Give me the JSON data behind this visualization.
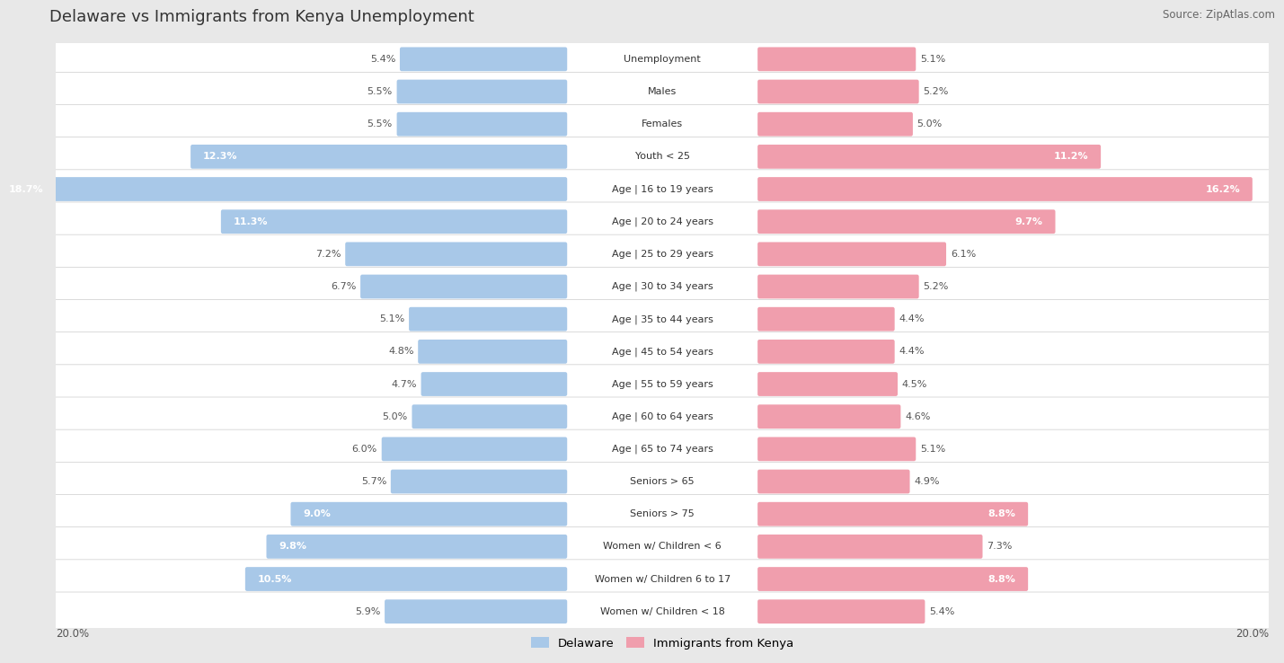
{
  "title": "Delaware vs Immigrants from Kenya Unemployment",
  "source": "Source: ZipAtlas.com",
  "categories": [
    "Unemployment",
    "Males",
    "Females",
    "Youth < 25",
    "Age | 16 to 19 years",
    "Age | 20 to 24 years",
    "Age | 25 to 29 years",
    "Age | 30 to 34 years",
    "Age | 35 to 44 years",
    "Age | 45 to 54 years",
    "Age | 55 to 59 years",
    "Age | 60 to 64 years",
    "Age | 65 to 74 years",
    "Seniors > 65",
    "Seniors > 75",
    "Women w/ Children < 6",
    "Women w/ Children 6 to 17",
    "Women w/ Children < 18"
  ],
  "delaware": [
    5.4,
    5.5,
    5.5,
    12.3,
    18.7,
    11.3,
    7.2,
    6.7,
    5.1,
    4.8,
    4.7,
    5.0,
    6.0,
    5.7,
    9.0,
    9.8,
    10.5,
    5.9
  ],
  "kenya": [
    5.1,
    5.2,
    5.0,
    11.2,
    16.2,
    9.7,
    6.1,
    5.2,
    4.4,
    4.4,
    4.5,
    4.6,
    5.1,
    4.9,
    8.8,
    7.3,
    8.8,
    5.4
  ],
  "delaware_color": "#a8c8e8",
  "kenya_color": "#f09ead",
  "axis_max": 20.0,
  "legend_label_delaware": "Delaware",
  "legend_label_kenya": "Immigrants from Kenya",
  "bg_color": "#e8e8e8",
  "row_color": "#ffffff",
  "title_color": "#333333",
  "source_color": "#666666",
  "value_color_outside": "#555555",
  "value_color_inside": "#ffffff"
}
